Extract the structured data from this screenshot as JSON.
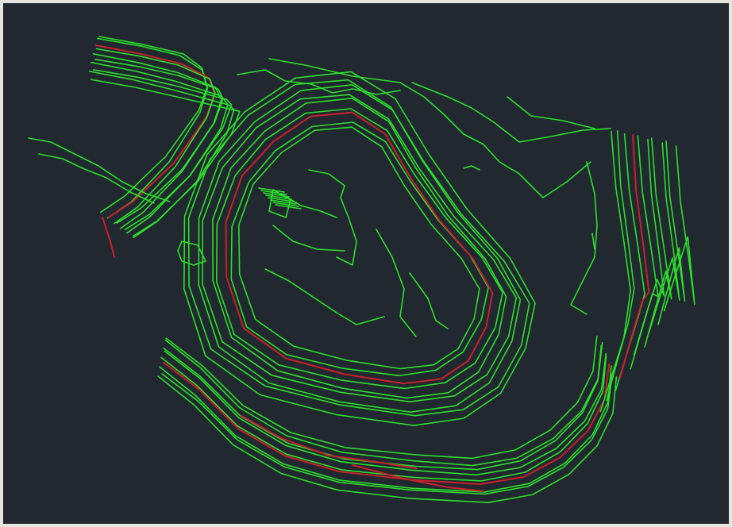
{
  "colors": {
    "background": "#212830",
    "frame": "#e6e6df",
    "minor_contour": "#2bdf2b",
    "index_contour": "#c8202c"
  },
  "drawing": {
    "contour_rings": 9,
    "index_ring_position": 3,
    "structures": 2
  }
}
